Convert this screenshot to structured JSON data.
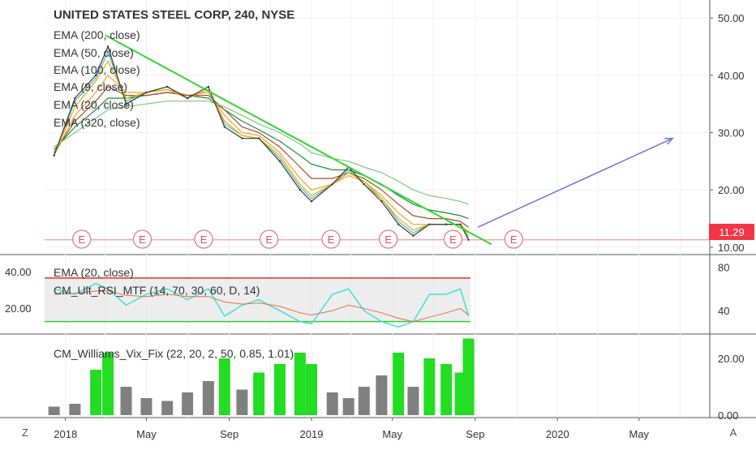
{
  "main": {
    "title": "UNITED STATES STEEL CORP, 240, NYSE",
    "indicators": [
      "EMA (200, close)",
      "EMA (50, close)",
      "EMA (100, close)",
      "EMA (9, close)",
      "EMA (20, close)",
      "EMA (320, close)"
    ],
    "price_ticks": [
      "50.00",
      "40.00",
      "30.00",
      "20.00",
      "10.00"
    ],
    "last_price": "11.29",
    "earnings_label": "E",
    "colors": {
      "accent": "#f23645",
      "trendline": "#33d633",
      "arrow": "#6c7bc4"
    }
  },
  "rsi_pane": {
    "labels": [
      "EMA (20, close)",
      "CM_Ult_RSI_MTF (14, 70, 30, 60, D, 14)"
    ],
    "left_ticks": [
      "40.00",
      "20.00"
    ],
    "right_ticks": [
      "80",
      "40"
    ]
  },
  "vix_pane": {
    "label": "CM_Williams_Vix_Fix (22, 20, 2, 50, 0.85, 1.01)",
    "right_ticks": [
      "20.00",
      "0.00"
    ]
  },
  "time_axis": {
    "ticks": [
      "2018",
      "May",
      "Sep",
      "2019",
      "May",
      "Sep",
      "2020",
      "May"
    ]
  },
  "controls": {
    "zoom_label": "Z",
    "auto_label": "A"
  },
  "chart_data": [
    {
      "type": "line",
      "title": "UNITED STATES STEEL CORP, 240, NYSE",
      "x_range": [
        "2017-12",
        "2020-08"
      ],
      "ylim": [
        9,
        52
      ],
      "close_series": {
        "x": [
          "2017-12-15",
          "2018-01-15",
          "2018-02-15",
          "2018-03-05",
          "2018-04-01",
          "2018-05-01",
          "2018-06-01",
          "2018-07-01",
          "2018-08-01",
          "2018-08-25",
          "2018-09-20",
          "2018-10-15",
          "2018-11-15",
          "2018-12-15",
          "2019-01-01",
          "2019-02-01",
          "2019-02-25",
          "2019-03-20",
          "2019-04-15",
          "2019-05-10",
          "2019-06-01",
          "2019-06-25",
          "2019-07-20",
          "2019-08-10",
          "2019-08-22"
        ],
        "values": [
          26,
          36,
          40,
          45,
          35,
          37,
          38,
          36,
          38,
          31,
          29,
          29,
          25,
          20,
          18,
          21,
          24,
          21,
          18,
          14,
          12,
          14,
          14,
          14,
          11.3
        ]
      },
      "ema_series": [
        {
          "name": "EMA (200, close)",
          "values": [
            27,
            31,
            34,
            36,
            36,
            36.5,
            37,
            36.5,
            36,
            34,
            32,
            30.5,
            28.5,
            26,
            24.5,
            23.5,
            23.5,
            22.5,
            21,
            19,
            17.5,
            16.5,
            16,
            15.5,
            15
          ]
        },
        {
          "name": "EMA (50, close)",
          "values": [
            26,
            33,
            37,
            40,
            37,
            37,
            37.5,
            36.5,
            37,
            33,
            30,
            29.5,
            26.5,
            22,
            20,
            21,
            22.5,
            21.5,
            19,
            16,
            14,
            14,
            14,
            14,
            12.5
          ]
        },
        {
          "name": "EMA (100, close)",
          "values": [
            26.5,
            32,
            35.5,
            38,
            36.5,
            36.5,
            37,
            36.5,
            36.5,
            34,
            31,
            30,
            27.5,
            24,
            22,
            22,
            23,
            22,
            20,
            17.5,
            15.5,
            15,
            15,
            14.5,
            13.5
          ]
        },
        {
          "name": "EMA (9, close)",
          "values": [
            26,
            35.5,
            39.5,
            44,
            35.5,
            37,
            38,
            36,
            37.5,
            31.5,
            29.5,
            29,
            25.5,
            20.5,
            18.5,
            21,
            23.5,
            21,
            18.5,
            14.5,
            12.5,
            14,
            14,
            14,
            11.6
          ]
        },
        {
          "name": "EMA (20, close)",
          "values": [
            26,
            34.5,
            39,
            42.5,
            36,
            37,
            37.5,
            36,
            37.5,
            32,
            29.5,
            29,
            26,
            21,
            19,
            21,
            23,
            21.5,
            18.5,
            15,
            13,
            14,
            14,
            14,
            12
          ]
        },
        {
          "name": "EMA (320, close)",
          "values": [
            27.5,
            30,
            32.5,
            34,
            34.5,
            35,
            35.5,
            35.5,
            35.5,
            34.5,
            33,
            31.5,
            30,
            28,
            26.5,
            25.5,
            25,
            24,
            23,
            21.5,
            20,
            19,
            18.5,
            18,
            17.5
          ]
        }
      ],
      "annotations": {
        "trendline": {
          "x": [
            "2018-03-01",
            "2019-09-25"
          ],
          "y": [
            47,
            10.5
          ]
        },
        "arrow": {
          "x": [
            "2019-09-05",
            "2020-06-20"
          ],
          "y": [
            13.5,
            29
          ]
        },
        "earnings_dates": [
          "2018-01-25",
          "2018-04-25",
          "2018-07-25",
          "2018-10-30",
          "2019-01-30",
          "2019-04-25",
          "2019-07-30",
          "2019-10-28"
        ],
        "last_price_line": 11.29
      }
    },
    {
      "type": "line",
      "title": "CM_Ult_RSI_MTF (14, 70, 30, 60, D, 14)",
      "ylim": [
        20,
        90
      ],
      "levels": [
        70,
        30
      ],
      "rsi_values": [
        60,
        55,
        65,
        60,
        45,
        55,
        60,
        50,
        60,
        35,
        45,
        50,
        40,
        30,
        28,
        55,
        60,
        40,
        30,
        25,
        30,
        55,
        55,
        60,
        35
      ],
      "ema_values": [
        55,
        56,
        58,
        58,
        54,
        53,
        55,
        53,
        53,
        48,
        46,
        47,
        44,
        38,
        36,
        40,
        45,
        42,
        38,
        33,
        30,
        34,
        38,
        42,
        36
      ]
    },
    {
      "type": "bar",
      "title": "CM_Williams_Vix_Fix (22, 20, 2, 50, 0.85, 1.01)",
      "ylim": [
        0,
        28
      ],
      "values": [
        3,
        4,
        16,
        22,
        10,
        6,
        5,
        8,
        12,
        20,
        9,
        15,
        18,
        22,
        18,
        8,
        6,
        10,
        14,
        22,
        10,
        20,
        18,
        15,
        27
      ]
    }
  ]
}
